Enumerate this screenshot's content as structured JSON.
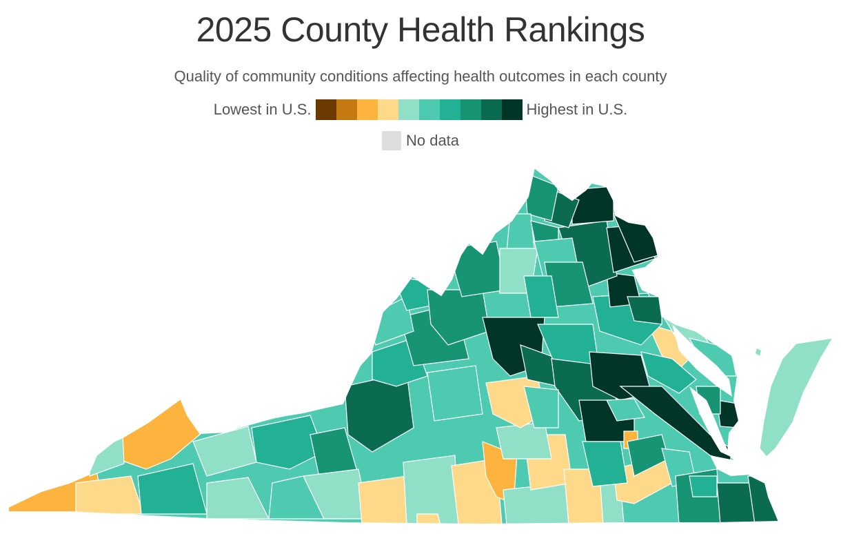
{
  "title": "2025 County Health Rankings",
  "subtitle": "Quality of community conditions affecting health outcomes in each county",
  "legend": {
    "low_label": "Lowest in U.S.",
    "high_label": "Highest in U.S.",
    "no_data_label": "No data",
    "no_data_color": "#dddddd",
    "colors": [
      "#6b3a00",
      "#c47a10",
      "#fdb43e",
      "#fed98a",
      "#8fe0c6",
      "#4ecab0",
      "#22b194",
      "#169474",
      "#0b6b50",
      "#013527"
    ]
  },
  "map": {
    "region": "Virginia",
    "state_outline_color": "#ffffff",
    "water_color": "#ffffff"
  }
}
